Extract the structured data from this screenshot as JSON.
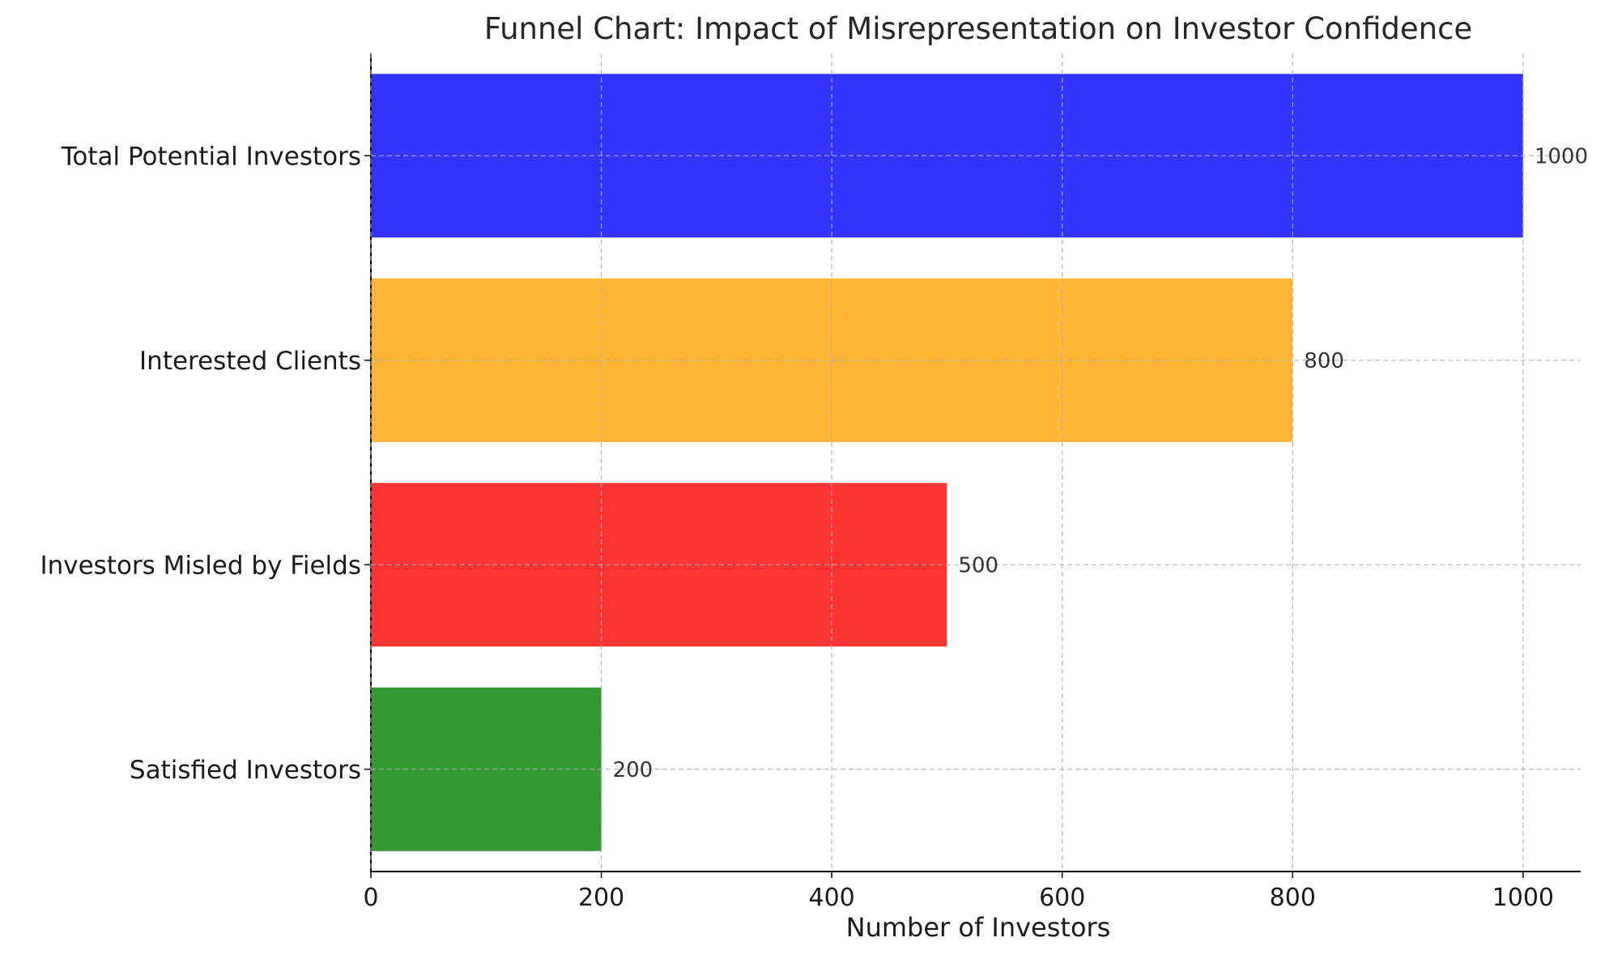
{
  "chart_data": {
    "type": "bar",
    "orientation": "horizontal",
    "title": "Funnel Chart: Impact of Misrepresentation on Investor Confidence",
    "xlabel": "Number of Investors",
    "ylabel": "",
    "categories": [
      "Total Potential Investors",
      "Interested Clients",
      "Investors Misled by Fields",
      "Satisfied Investors"
    ],
    "values": [
      1000,
      800,
      500,
      200
    ],
    "colors": [
      "#3333ff",
      "#ffb533",
      "#ff3333",
      "#339933"
    ],
    "xlim": [
      0,
      1050
    ],
    "xticks": [
      0,
      200,
      400,
      600,
      800,
      1000
    ],
    "grid": true,
    "grid_style": "dashed",
    "data_labels": true,
    "legend": "none"
  }
}
